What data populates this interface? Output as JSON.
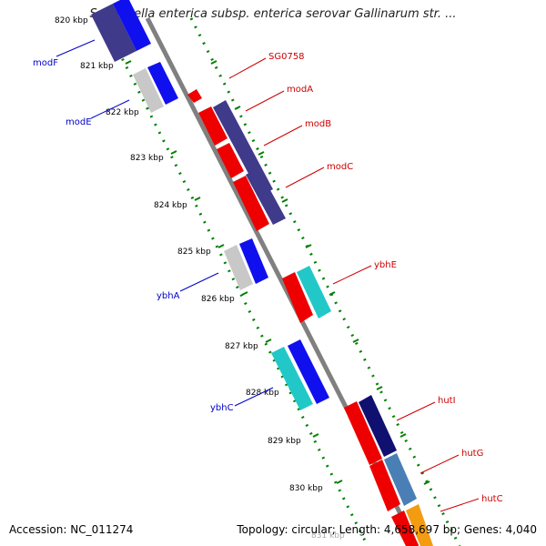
{
  "header": {
    "title": "Salmonella enterica subsp. enterica serovar Gallinarum str. ..."
  },
  "footer": {
    "accession": "Accession: NC_011274",
    "summary": "Topology: circular; Length: 4,658,697 bp; Genes: 4,040"
  },
  "ticks": [
    "820 kbp",
    "821 kbp",
    "822 kbp",
    "823 kbp",
    "824 kbp",
    "825 kbp",
    "826 kbp",
    "827 kbp",
    "828 kbp",
    "829 kbp",
    "830 kbp",
    "831 kbp"
  ],
  "genes_minus": [
    {
      "name": "modF",
      "color": "#3f3a8a"
    },
    {
      "name": "modE",
      "color": "#c8c8c8"
    },
    {
      "name": "ybhA",
      "color": "#c8c8c8"
    },
    {
      "name": "ybhC",
      "color": "#22c8c8"
    }
  ],
  "genes_plus": [
    {
      "name": "SG0758",
      "color": "#ee0000"
    },
    {
      "name": "modA",
      "color": "#ee0000"
    },
    {
      "name": "modB",
      "color": "#ee0000"
    },
    {
      "name": "modC",
      "color": "#ee0000"
    },
    {
      "name": "ybhE",
      "color": "#ee0000"
    },
    {
      "name": "hutI",
      "color": "#ee0000"
    },
    {
      "name": "hutG",
      "color": "#ee0000"
    },
    {
      "name": "hutC",
      "color": "#ee0000"
    }
  ],
  "colors": {
    "backbone": "#808080",
    "tick": "#008000",
    "cog_blue": "#1010ee",
    "cog_dark": "#3f3a8a",
    "cog_navy": "#101070",
    "cog_steel": "#4a7fb5",
    "cog_cyan": "#22c8c8",
    "cog_orange": "#f39c12"
  }
}
